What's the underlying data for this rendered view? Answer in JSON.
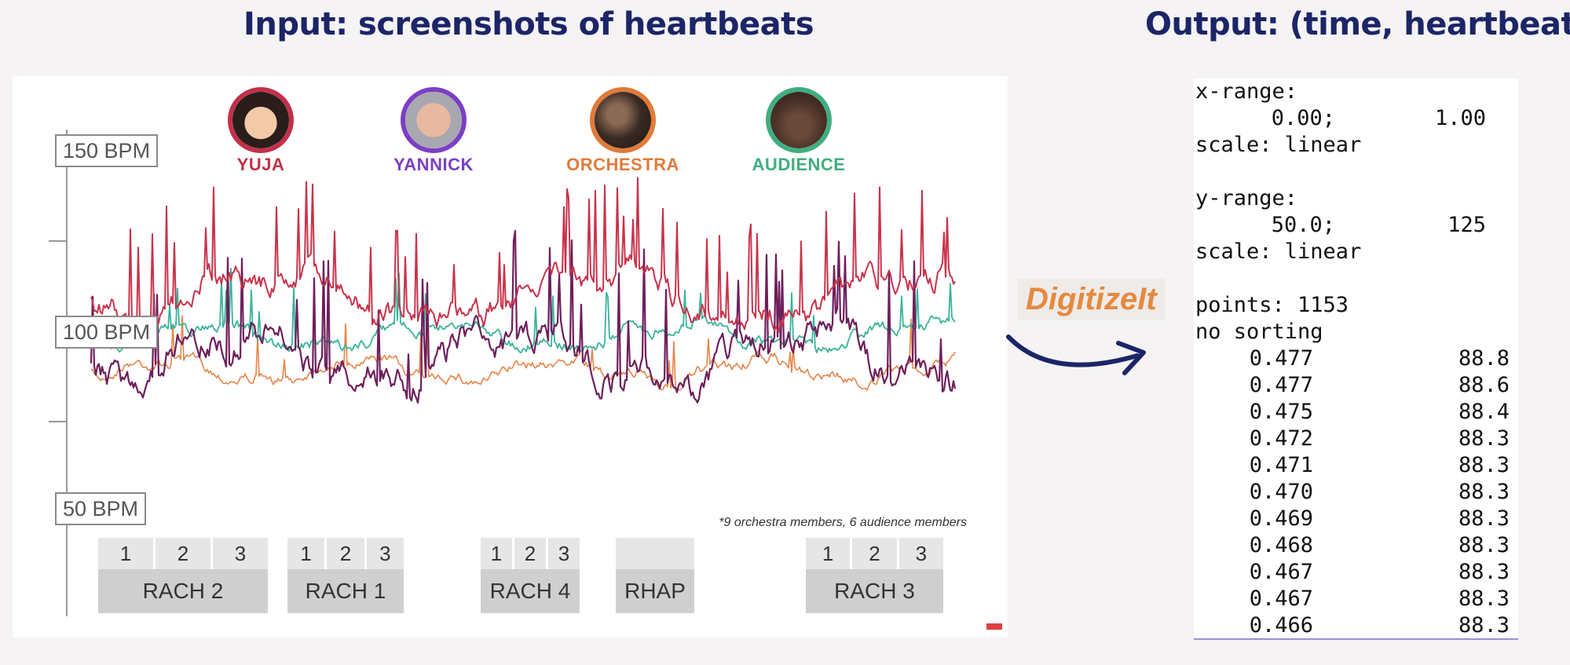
{
  "headings": {
    "input": "Input: screenshots of heartbeats",
    "output": "Output: (time, heartbeat)"
  },
  "chart": {
    "y_labels": [
      "150 BPM",
      "100 BPM",
      "50 BPM"
    ],
    "participants": [
      {
        "name": "YUJA",
        "color": "#c2304a"
      },
      {
        "name": "YANNICK",
        "color": "#7b3fc4"
      },
      {
        "name": "ORCHESTRA",
        "color": "#e07b3a"
      },
      {
        "name": "AUDIENCE",
        "color": "#3fae7e"
      }
    ],
    "footnote": "*9 orchestra members, 6 audience members",
    "pieces": [
      {
        "label": "RACH 2",
        "movements": [
          "1",
          "2",
          "3"
        ]
      },
      {
        "label": "RACH 1",
        "movements": [
          "1",
          "2",
          "3"
        ]
      },
      {
        "label": "RACH 4",
        "movements": [
          "1",
          "2",
          "3"
        ]
      },
      {
        "label": "RHAP",
        "movements": [
          ""
        ]
      },
      {
        "label": "RACH 3",
        "movements": [
          "1",
          "2",
          "3"
        ]
      }
    ],
    "line_colors": {
      "yuja": "#c8334b",
      "yannick": "#6e1f5c",
      "orchestra": "#e5854a",
      "audience": "#3bb39a"
    }
  },
  "tool": {
    "name": "DigitizeIt"
  },
  "output": {
    "x_range_label": "x-range:",
    "x_range": [
      "0.00;",
      "1.00"
    ],
    "x_scale": "scale: linear",
    "y_range_label": "y-range:",
    "y_range": [
      "50.0;",
      "125"
    ],
    "y_scale": "scale: linear",
    "points_label": "points: 1153",
    "sorting": "no sorting",
    "points": [
      [
        "0.477",
        "88.8"
      ],
      [
        "0.477",
        "88.6"
      ],
      [
        "0.475",
        "88.4"
      ],
      [
        "0.472",
        "88.3"
      ],
      [
        "0.471",
        "88.3"
      ],
      [
        "0.470",
        "88.3"
      ],
      [
        "0.469",
        "88.3"
      ],
      [
        "0.468",
        "88.3"
      ],
      [
        "0.467",
        "88.3"
      ],
      [
        "0.467",
        "88.3"
      ],
      [
        "0.466",
        "88.3"
      ]
    ]
  }
}
